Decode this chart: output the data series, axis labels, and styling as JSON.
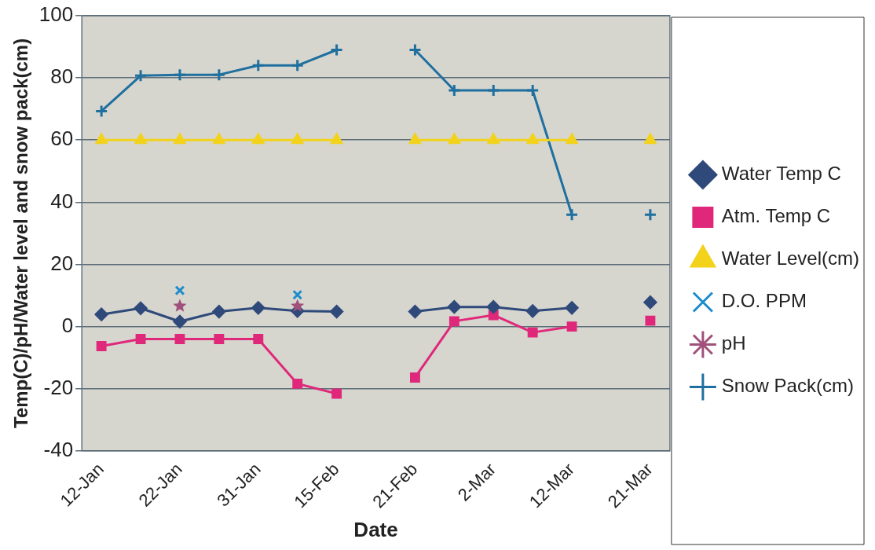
{
  "chart_data": {
    "type": "line",
    "xlabel": "Date",
    "ylabel": "Temp(C)/pH/Water level and snow pack(cm)",
    "categories": [
      "12-Jan",
      null,
      "22-Jan",
      null,
      "31-Jan",
      null,
      "15-Feb",
      null,
      "21-Feb",
      null,
      "2-Mar",
      null,
      "12-Mar",
      null,
      "21-Mar"
    ],
    "series": [
      {
        "name": "Water Temp C",
        "color": "#2f4a7a",
        "marker": "diamond",
        "values": [
          3.9,
          5.9,
          1.6,
          4.8,
          6,
          5,
          4.8,
          null,
          4.8,
          6.3,
          6.3,
          5,
          6,
          null,
          7.8
        ]
      },
      {
        "name": "Atm. Temp C",
        "color": "#e0287a",
        "marker": "square",
        "values": [
          -6.3,
          -4,
          -4,
          -4,
          -4,
          -18.4,
          -21.6,
          null,
          -16.4,
          1.7,
          3.7,
          -1.9,
          0,
          null,
          1.9
        ]
      },
      {
        "name": "Water Level(cm)",
        "color": "#f2d21b",
        "marker": "triangle",
        "values": [
          60,
          60,
          60,
          60,
          60,
          60,
          60,
          null,
          60,
          60,
          60,
          60,
          60,
          null,
          60
        ]
      },
      {
        "name": "D.O. PPM",
        "color": "#1c8ccc",
        "marker": "x",
        "values": [
          null,
          null,
          11.6,
          null,
          null,
          10.2,
          null,
          null,
          null,
          null,
          null,
          null,
          null,
          null,
          null
        ]
      },
      {
        "name": "pH",
        "type": "scatter",
        "color": "#a0507a",
        "marker": "star",
        "values": [
          null,
          null,
          6.6,
          null,
          null,
          6.6,
          null,
          null,
          null,
          null,
          null,
          null,
          null,
          null,
          null
        ]
      },
      {
        "name": "Snow Pack(cm)",
        "color": "#1f6f9f",
        "marker": "cross",
        "values": [
          69.3,
          80.7,
          81,
          81,
          84,
          84,
          89,
          null,
          89,
          76,
          76,
          76,
          36,
          null,
          36
        ]
      }
    ],
    "ylim": [
      -40,
      100
    ],
    "yticks": [
      -40,
      -20,
      0,
      20,
      40,
      60,
      80,
      100
    ],
    "grid": "y",
    "legend": "right"
  }
}
